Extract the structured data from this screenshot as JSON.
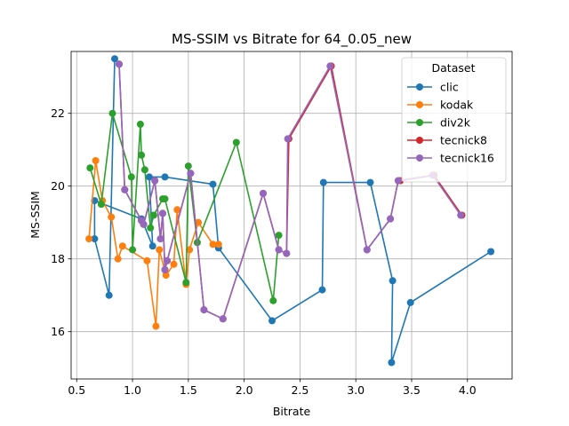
{
  "chart_data": {
    "type": "line",
    "title": "MS-SSIM vs Bitrate for 64_0.05_new",
    "xlabel": "Bitrate",
    "ylabel": "MS-SSIM",
    "xlim": [
      0.45,
      4.4
    ],
    "ylim": [
      14.7,
      23.7
    ],
    "xticks": [
      0.5,
      1.0,
      1.5,
      2.0,
      2.5,
      3.0,
      3.5,
      4.0
    ],
    "xtick_labels": [
      "0.5",
      "1.0",
      "1.5",
      "2.0",
      "2.5",
      "3.0",
      "3.5",
      "4.0"
    ],
    "yticks": [
      16,
      18,
      20,
      22
    ],
    "ytick_labels": [
      "16",
      "18",
      "20",
      "22"
    ],
    "grid": true,
    "legend_title": "Dataset",
    "legend_position": "top-right",
    "series": [
      {
        "name": "clic",
        "color": "#1f77b4",
        "x": [
          0.84,
          0.79,
          0.66,
          0.66,
          1.08,
          1.18,
          1.15,
          1.29,
          1.72,
          1.77,
          2.25,
          2.7,
          2.71,
          3.13,
          3.33,
          3.32,
          3.49,
          4.21
        ],
        "y": [
          23.5,
          17.0,
          18.55,
          19.6,
          19.1,
          18.35,
          20.25,
          20.25,
          20.05,
          18.3,
          16.3,
          17.15,
          20.1,
          20.1,
          17.4,
          15.15,
          16.8,
          18.2
        ]
      },
      {
        "name": "kodak",
        "color": "#ff7f0e",
        "x": [
          0.61,
          0.67,
          0.73,
          0.81,
          0.87,
          0.91,
          1.13,
          1.21,
          1.24,
          1.3,
          1.37,
          1.4,
          1.48,
          1.51,
          1.59,
          1.72,
          1.77
        ],
        "y": [
          18.55,
          20.7,
          19.6,
          19.15,
          18.0,
          18.35,
          17.95,
          16.15,
          18.25,
          17.55,
          17.85,
          19.35,
          17.3,
          18.25,
          19.0,
          18.4,
          18.4
        ]
      },
      {
        "name": "div2k",
        "color": "#2ca02c",
        "x": [
          0.62,
          0.72,
          0.82,
          0.99,
          1.0,
          1.07,
          1.08,
          1.11,
          1.16,
          1.19,
          1.27,
          1.29,
          1.48,
          1.5,
          1.58,
          1.93,
          2.26,
          2.31
        ],
        "y": [
          20.5,
          19.5,
          22.0,
          20.25,
          18.25,
          21.7,
          20.85,
          20.45,
          18.85,
          19.2,
          19.65,
          19.65,
          17.35,
          20.55,
          18.45,
          21.2,
          16.85,
          18.65
        ]
      },
      {
        "name": "tecnick8",
        "color": "#d62728",
        "x": [
          0.88,
          0.93,
          1.08,
          1.1,
          1.2,
          1.25,
          1.27,
          1.29,
          1.31,
          1.52,
          1.64,
          1.81,
          2.17,
          2.31,
          2.38,
          2.4,
          2.78,
          3.1,
          3.31,
          3.38,
          3.4,
          3.7,
          3.95
        ],
        "y": [
          23.35,
          19.9,
          19.05,
          18.95,
          20.15,
          18.55,
          19.25,
          17.7,
          17.95,
          20.35,
          16.6,
          16.35,
          19.8,
          18.25,
          18.15,
          21.3,
          23.3,
          18.25,
          19.1,
          20.15,
          20.15,
          20.3,
          19.2
        ]
      },
      {
        "name": "tecnick16",
        "color": "#9467bd",
        "x": [
          0.88,
          0.93,
          1.08,
          1.1,
          1.2,
          1.25,
          1.27,
          1.29,
          1.31,
          1.52,
          1.64,
          1.81,
          2.17,
          2.31,
          2.38,
          2.39,
          2.77,
          3.1,
          3.31,
          3.38,
          3.69,
          3.94
        ],
        "y": [
          23.35,
          19.9,
          19.05,
          18.95,
          20.15,
          18.55,
          19.25,
          17.7,
          17.95,
          20.35,
          16.6,
          16.35,
          19.8,
          18.25,
          18.15,
          21.3,
          23.3,
          18.25,
          19.1,
          20.15,
          20.3,
          19.2
        ]
      }
    ]
  }
}
